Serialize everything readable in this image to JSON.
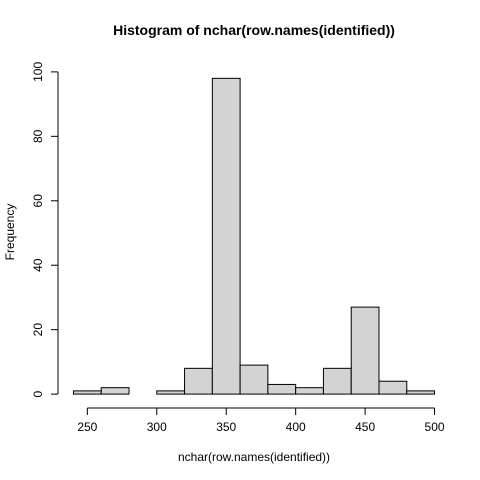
{
  "chart_data": {
    "type": "bar",
    "title": "Histogram of nchar(row.names(identified))",
    "xlabel": "nchar(row.names(identified))",
    "ylabel": "Frequency",
    "bins": [
      {
        "start": 240,
        "end": 260,
        "count": 1
      },
      {
        "start": 260,
        "end": 280,
        "count": 2
      },
      {
        "start": 280,
        "end": 300,
        "count": 0
      },
      {
        "start": 300,
        "end": 320,
        "count": 1
      },
      {
        "start": 320,
        "end": 340,
        "count": 8
      },
      {
        "start": 340,
        "end": 360,
        "count": 98
      },
      {
        "start": 360,
        "end": 380,
        "count": 9
      },
      {
        "start": 380,
        "end": 400,
        "count": 3
      },
      {
        "start": 400,
        "end": 420,
        "count": 2
      },
      {
        "start": 420,
        "end": 440,
        "count": 8
      },
      {
        "start": 440,
        "end": 460,
        "count": 27
      },
      {
        "start": 460,
        "end": 480,
        "count": 4
      },
      {
        "start": 480,
        "end": 500,
        "count": 1
      }
    ],
    "xlim": [
      240,
      500
    ],
    "ylim": [
      0,
      100
    ],
    "xticks": [
      250,
      300,
      350,
      400,
      450,
      500
    ],
    "yticks": [
      0,
      20,
      40,
      60,
      80,
      100
    ],
    "bar_fill": "#d3d3d3",
    "bar_stroke": "#000000",
    "grid": false,
    "legend": "none"
  }
}
